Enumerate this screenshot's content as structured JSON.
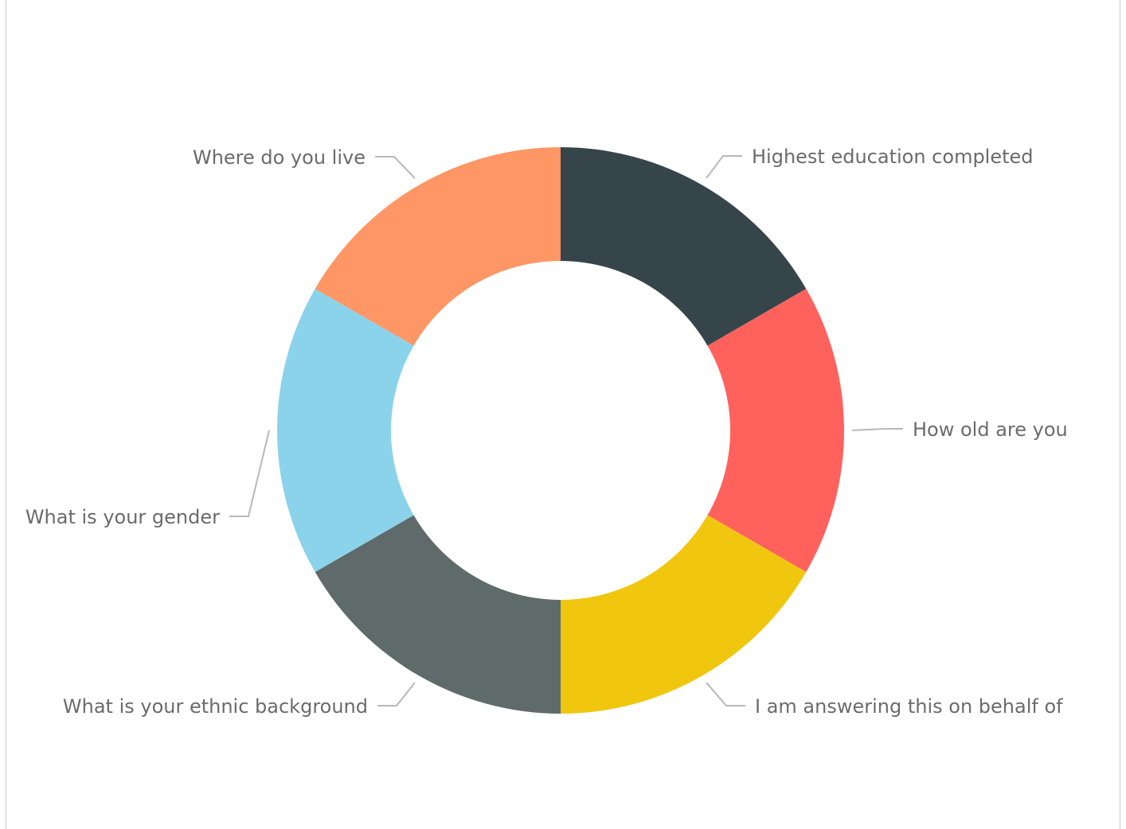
{
  "chart_data": {
    "type": "pie",
    "variant": "donut",
    "title": "",
    "slices": [
      {
        "label": "Highest education completed",
        "value": 1,
        "color": "#36454a"
      },
      {
        "label": "How old are you",
        "value": 1,
        "color": "#ff625d"
      },
      {
        "label": "I am answering this on behalf of",
        "value": 1,
        "color": "#f0c60f"
      },
      {
        "label": "What is your ethnic background",
        "value": 1,
        "color": "#5f6a6b"
      },
      {
        "label": "What is your gender",
        "value": 1,
        "color": "#8bd3ea"
      },
      {
        "label": "Where do you live",
        "value": 1,
        "color": "#ff9665"
      }
    ],
    "legend": "none",
    "label_line_color": "#b8b8b8"
  }
}
